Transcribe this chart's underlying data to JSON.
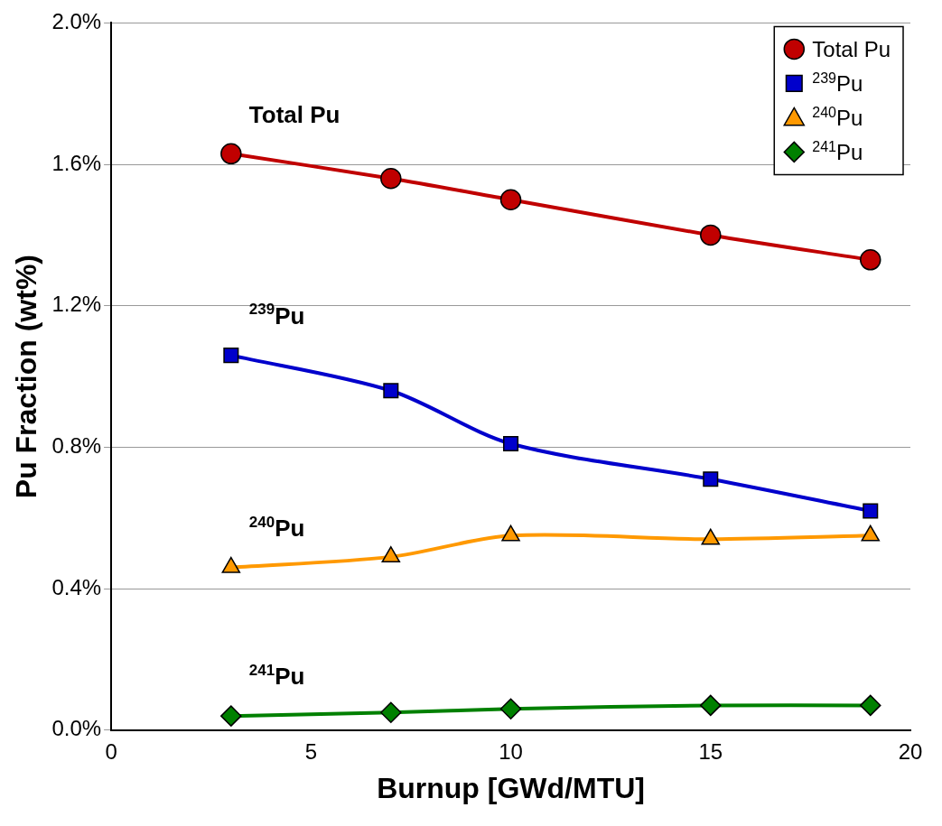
{
  "chart_data": {
    "type": "line",
    "xlabel": "Burnup [GWd/MTU]",
    "ylabel": "Pu Fraction (wt%)",
    "x": [
      3,
      7,
      10,
      15,
      19
    ],
    "series": [
      {
        "name": "Total Pu",
        "color": "#c00000",
        "marker": "circle",
        "values": [
          1.63,
          1.56,
          1.5,
          1.4,
          1.33
        ]
      },
      {
        "name": "$^{239}$Pu",
        "color": "#0000cc",
        "marker": "square",
        "values": [
          1.06,
          0.96,
          0.81,
          0.71,
          0.62
        ]
      },
      {
        "name": "$^{240}$Pu",
        "color": "#ff9900",
        "marker": "triangle",
        "values": [
          0.46,
          0.49,
          0.55,
          0.54,
          0.55
        ]
      },
      {
        "name": "$^{241}$Pu",
        "color": "#008000",
        "marker": "diamond",
        "values": [
          0.04,
          0.05,
          0.06,
          0.07,
          0.07
        ]
      }
    ],
    "xlim": [
      0,
      20
    ],
    "xticks": [
      0,
      5,
      10,
      15,
      20
    ],
    "ylim": [
      0,
      2
    ],
    "yticks": [
      {
        "value": 0,
        "label": "0.0%"
      },
      {
        "value": 0.4,
        "label": "0.4%"
      },
      {
        "value": 0.8,
        "label": "0.8%"
      },
      {
        "value": 1.2,
        "label": "1.2%"
      },
      {
        "value": 1.6,
        "label": "1.6%"
      },
      {
        "value": 2,
        "label": "2.0%"
      }
    ],
    "annotations": [
      "Total Pu",
      "$^{239}$Pu",
      "$^{240}$Pu",
      "$^{241}$Pu"
    ],
    "grid": "y",
    "legend": "top right",
    "line_style": "solid"
  }
}
